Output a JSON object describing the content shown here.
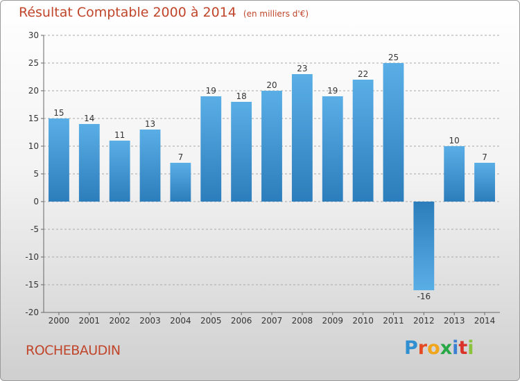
{
  "header": {
    "title": "Résultat Comptable 2000 à 2014",
    "subtitle": "(en milliers d'€)"
  },
  "commune": "ROCHEBAUDIN",
  "logo": {
    "text": "Proxiti"
  },
  "colors": {
    "bar_top": "#5aaee6",
    "bar_bottom": "#2c7dbb",
    "text_accent": "#c0452a",
    "grid": "#9a9a9a"
  },
  "chart_data": {
    "type": "bar",
    "title": "Résultat Comptable 2000 à 2014",
    "subtitle": "(en milliers d'€)",
    "xlabel": "",
    "ylabel": "",
    "categories": [
      "2000",
      "2001",
      "2002",
      "2003",
      "2004",
      "2005",
      "2006",
      "2007",
      "2008",
      "2009",
      "2010",
      "2011",
      "2012",
      "2013",
      "2014"
    ],
    "values": [
      15,
      14,
      11,
      13,
      7,
      19,
      18,
      20,
      23,
      19,
      22,
      25,
      -16,
      10,
      7
    ],
    "data_labels": [
      "15",
      "14",
      "11",
      "13",
      "7",
      "19",
      "18",
      "20",
      "23",
      "19",
      "22",
      "25",
      "-16",
      "10",
      "7"
    ],
    "ylim": [
      -20,
      30
    ],
    "yticks": [
      30,
      25,
      20,
      15,
      10,
      5,
      0,
      -5,
      -10,
      -15,
      -20
    ],
    "ytick_labels": [
      "30",
      "25",
      "20",
      "15",
      "10",
      "5",
      "0",
      "-5",
      "-10",
      "-15",
      "-20"
    ],
    "grid": true
  }
}
